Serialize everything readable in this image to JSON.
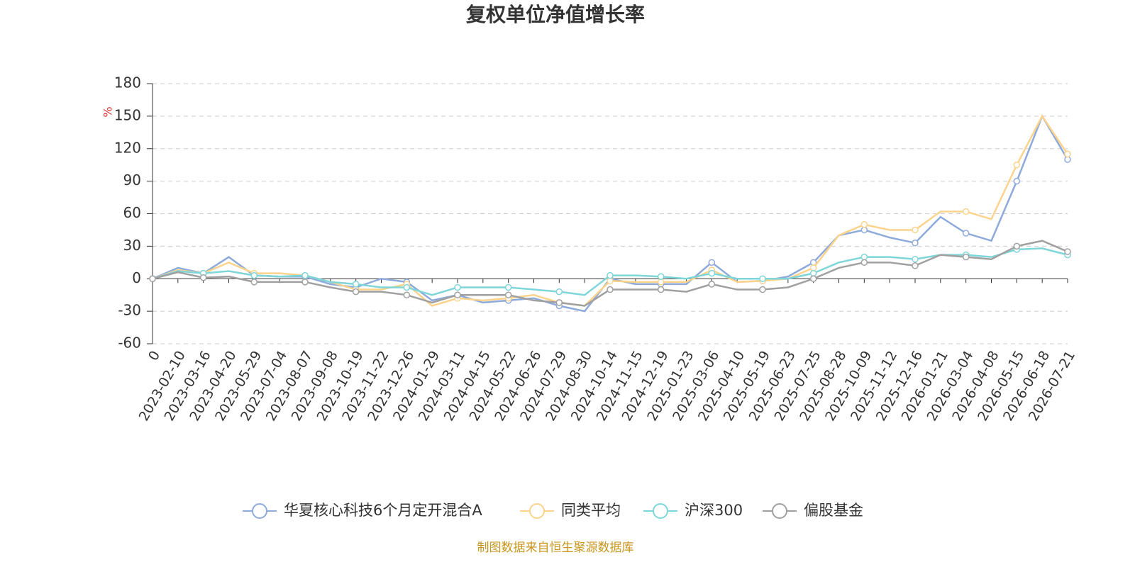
{
  "chart_data": {
    "type": "line",
    "title": "复权单位净值增长率",
    "y_label": "%",
    "source": "制图数据来自恒生聚源数据库",
    "categories": [
      "0",
      "2023-02-10",
      "2023-03-16",
      "2023-04-20",
      "2023-05-29",
      "2023-07-04",
      "2023-08-07",
      "2023-09-08",
      "2023-10-19",
      "2023-11-22",
      "2023-12-26",
      "2024-01-29",
      "2024-03-11",
      "2024-04-15",
      "2024-05-22",
      "2024-06-26",
      "2024-07-29",
      "2024-08-30",
      "2024-10-14",
      "2024-11-15",
      "2024-12-19",
      "2025-01-23",
      "2025-03-06",
      "2025-04-10",
      "2025-05-19",
      "2025-06-23",
      "2025-07-25",
      "2025-08-28",
      "2025-10-09",
      "2025-11-12",
      "2025-12-16",
      "2026-01-21",
      "2026-03-04",
      "2026-04-08",
      "2026-05-15",
      "2026-06-18",
      "2026-07-21"
    ],
    "series": [
      {
        "name": "华夏核心科技6个月定开混合A",
        "color": "#8eaadb",
        "values": [
          0,
          10,
          5,
          20,
          3,
          2,
          2,
          -5,
          -8,
          0,
          -3,
          -20,
          -15,
          -22,
          -20,
          -18,
          -25,
          -30,
          0,
          -5,
          -5,
          -5,
          15,
          -3,
          -2,
          2,
          15,
          40,
          45,
          38,
          33,
          57,
          42,
          35,
          90,
          150,
          110
        ]
      },
      {
        "name": "同类平均",
        "color": "#fbd38d",
        "values": [
          0,
          8,
          5,
          15,
          5,
          5,
          3,
          -3,
          -10,
          -10,
          -5,
          -25,
          -18,
          -20,
          -18,
          -15,
          -22,
          -25,
          -2,
          -3,
          -3,
          -3,
          8,
          -3,
          -2,
          0,
          10,
          40,
          50,
          45,
          45,
          62,
          62,
          55,
          105,
          150,
          115
        ]
      },
      {
        "name": "沪深300",
        "color": "#7fd6d8",
        "values": [
          0,
          7,
          5,
          7,
          3,
          2,
          3,
          -3,
          -5,
          -8,
          -8,
          -15,
          -8,
          -8,
          -8,
          -10,
          -12,
          -15,
          3,
          3,
          2,
          0,
          5,
          0,
          0,
          0,
          5,
          15,
          20,
          20,
          18,
          22,
          22,
          20,
          27,
          28,
          22
        ]
      },
      {
        "name": "偏股基金",
        "color": "#a0a0a0",
        "values": [
          0,
          6,
          1,
          2,
          -3,
          -3,
          -3,
          -8,
          -12,
          -12,
          -15,
          -22,
          -15,
          -15,
          -15,
          -20,
          -22,
          -25,
          -10,
          -10,
          -10,
          -12,
          -5,
          -10,
          -10,
          -8,
          0,
          10,
          15,
          15,
          12,
          22,
          20,
          18,
          30,
          35,
          25
        ]
      }
    ],
    "ylim": [
      -60,
      180
    ],
    "yticks": [
      -60,
      -30,
      0,
      30,
      60,
      90,
      120,
      150,
      180
    ],
    "grid": true
  }
}
